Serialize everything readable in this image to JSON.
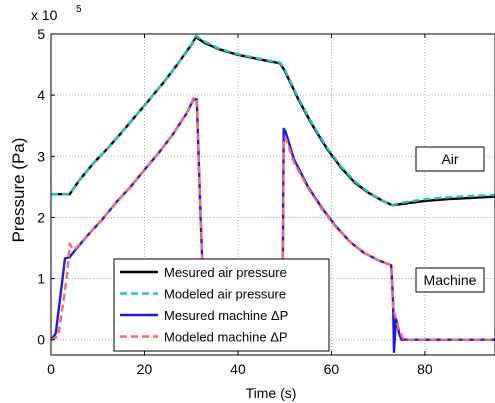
{
  "chart_data": {
    "type": "line",
    "xlabel": "Time (s)",
    "ylabel": "Pressure (Pa)",
    "y_exponent_label": "x 10",
    "y_exponent_power": "5",
    "xlim": [
      0,
      95
    ],
    "ylim": [
      -0.25,
      5
    ],
    "y_scale": 100000,
    "grid": true,
    "x_ticks": [
      0,
      20,
      40,
      60,
      80
    ],
    "x_tick_labels": [
      "0",
      "20",
      "40",
      "60",
      "80"
    ],
    "y_ticks": [
      0,
      1,
      2,
      3,
      4,
      5
    ],
    "y_tick_labels": [
      "0",
      "1",
      "2",
      "3",
      "4",
      "5"
    ],
    "legend_position": "lower-left",
    "annotations": [
      {
        "text": "Air",
        "x": 86,
        "y": 3.25
      },
      {
        "text": "Machine",
        "x": 86,
        "y": 1.08
      }
    ],
    "series": [
      {
        "name": "Mesured air pressure",
        "color": "#000000",
        "style": "solid",
        "x": [
          0,
          4,
          6,
          9,
          12,
          15,
          18,
          21,
          24,
          27,
          30,
          31,
          33,
          36,
          40,
          45,
          49,
          50,
          53,
          56,
          59,
          62,
          65,
          68,
          71,
          73,
          75,
          80,
          85,
          90,
          95
        ],
        "y": [
          2.38,
          2.38,
          2.6,
          2.88,
          3.12,
          3.38,
          3.65,
          3.92,
          4.2,
          4.5,
          4.82,
          4.95,
          4.85,
          4.75,
          4.66,
          4.58,
          4.52,
          4.4,
          3.92,
          3.5,
          3.13,
          2.82,
          2.57,
          2.4,
          2.27,
          2.2,
          2.22,
          2.27,
          2.3,
          2.32,
          2.34
        ]
      },
      {
        "name": "Modeled air pressure",
        "color": "#22c1c3",
        "style": "dashed",
        "x": [
          0,
          4,
          6,
          9,
          12,
          15,
          18,
          21,
          24,
          27,
          30,
          31,
          33,
          36,
          40,
          45,
          49,
          50,
          53,
          56,
          59,
          62,
          65,
          68,
          71,
          73,
          75,
          80,
          85,
          90,
          95
        ],
        "y": [
          2.38,
          2.38,
          2.6,
          2.88,
          3.12,
          3.38,
          3.65,
          3.92,
          4.2,
          4.5,
          4.83,
          4.97,
          4.87,
          4.76,
          4.67,
          4.59,
          4.53,
          4.42,
          3.94,
          3.52,
          3.15,
          2.84,
          2.59,
          2.41,
          2.27,
          2.2,
          2.24,
          2.3,
          2.33,
          2.35,
          2.37
        ]
      },
      {
        "name": "Mesured machine ΔP",
        "color": "#1a1aee",
        "style": "solid",
        "x": [
          0,
          1,
          2,
          3,
          4,
          4.5,
          5,
          8,
          11,
          14,
          17,
          20,
          23,
          26,
          29,
          30.5,
          31.2,
          32,
          33,
          34,
          49.5,
          49.8,
          50.2,
          52,
          55,
          58,
          61,
          64,
          67,
          70,
          72.8,
          73.2,
          73.4,
          73.8,
          74.5,
          75,
          95
        ],
        "y": [
          0,
          0.1,
          0.7,
          1.33,
          1.35,
          1.4,
          1.45,
          1.72,
          1.97,
          2.25,
          2.5,
          2.78,
          3.05,
          3.35,
          3.7,
          3.93,
          3.93,
          2.0,
          0.05,
          0.0,
          0.0,
          3.45,
          3.4,
          2.95,
          2.5,
          2.15,
          1.85,
          1.6,
          1.42,
          1.3,
          1.22,
          0.6,
          -0.2,
          0.35,
          0.1,
          0.0,
          0.0
        ]
      },
      {
        "name": "Modeled machine ΔP",
        "color": "#ff6666",
        "style": "dashed",
        "x": [
          0,
          1.5,
          2.5,
          3.5,
          4.0,
          4.5,
          5,
          8,
          11,
          14,
          17,
          20,
          23,
          26,
          29,
          30.5,
          31.2,
          32,
          33,
          34,
          49.5,
          49.8,
          50.2,
          52,
          55,
          58,
          61,
          64,
          67,
          70,
          72.8,
          73.2,
          73.6,
          74.5,
          75.5,
          95
        ],
        "y": [
          0,
          0.05,
          0.55,
          1.1,
          1.57,
          1.5,
          1.47,
          1.72,
          1.97,
          2.25,
          2.5,
          2.78,
          3.05,
          3.35,
          3.7,
          3.95,
          3.95,
          2.0,
          0.05,
          0.0,
          0.0,
          3.3,
          3.3,
          2.9,
          2.48,
          2.13,
          1.84,
          1.6,
          1.42,
          1.3,
          1.22,
          0.5,
          0.4,
          0.15,
          0.0,
          0.0
        ]
      }
    ]
  }
}
